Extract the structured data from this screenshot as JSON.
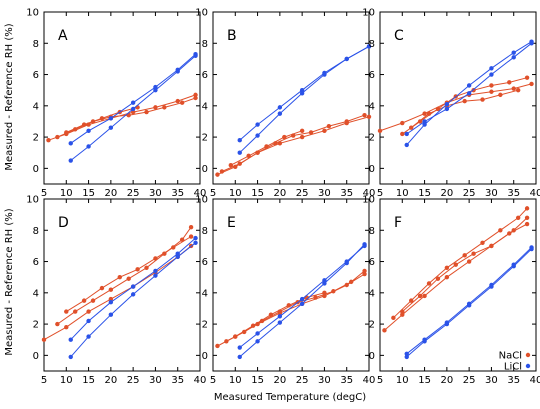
{
  "colors": {
    "NaCl": "#e0502a",
    "LiCl": "#2a52e8"
  },
  "chart_data": {
    "type": "scatter",
    "xlabel": "Measured Temperature (degC)",
    "ylabel": "Measured - Reference RH (%)",
    "xlim": [
      5,
      40
    ],
    "ylim": [
      -1,
      10
    ],
    "xticks": [
      5,
      10,
      15,
      20,
      25,
      30,
      35,
      40
    ],
    "yticks": [
      0,
      2,
      4,
      6,
      8,
      10
    ],
    "grid": false,
    "legend_placement": "bottom-right of panel F",
    "legend": [
      "NaCl",
      "LiCl"
    ],
    "panels": [
      {
        "label": "A",
        "series": [
          {
            "name": "NaCl",
            "x": [
              6,
              10,
              15,
              20,
              25,
              30,
              35,
              39
            ],
            "y": [
              1.8,
              2.2,
              2.8,
              3.2,
              3.6,
              3.9,
              4.3,
              4.7
            ]
          },
          {
            "name": "NaCl",
            "x": [
              8,
              12,
              16,
              20,
              24,
              28,
              32,
              36,
              39
            ],
            "y": [
              2.0,
              2.5,
              3.0,
              3.3,
              3.4,
              3.6,
              3.9,
              4.2,
              4.5
            ]
          },
          {
            "name": "NaCl",
            "x": [
              10,
              14,
              18,
              22,
              26
            ],
            "y": [
              2.3,
              2.8,
              3.2,
              3.6,
              3.9
            ]
          },
          {
            "name": "LiCl",
            "x": [
              11,
              15,
              20,
              25,
              30,
              35,
              39
            ],
            "y": [
              0.5,
              1.4,
              2.6,
              3.8,
              5.0,
              6.2,
              7.2
            ]
          },
          {
            "name": "LiCl",
            "x": [
              11,
              15,
              20,
              25,
              30,
              35,
              39
            ],
            "y": [
              1.6,
              2.4,
              3.2,
              4.2,
              5.2,
              6.3,
              7.3
            ]
          }
        ]
      },
      {
        "label": "B",
        "series": [
          {
            "name": "NaCl",
            "x": [
              6,
              10,
              15,
              20,
              25,
              30,
              35,
              40
            ],
            "y": [
              -0.4,
              0.1,
              1.0,
              1.6,
              2.0,
              2.4,
              2.9,
              3.3
            ]
          },
          {
            "name": "NaCl",
            "x": [
              7,
              11,
              15,
              19,
              23,
              27,
              31,
              35,
              39
            ],
            "y": [
              -0.2,
              0.3,
              1.0,
              1.6,
              2.1,
              2.3,
              2.7,
              3.0,
              3.4
            ]
          },
          {
            "name": "NaCl",
            "x": [
              9,
              13,
              17,
              21,
              25
            ],
            "y": [
              0.2,
              0.8,
              1.4,
              2.0,
              2.4
            ]
          },
          {
            "name": "LiCl",
            "x": [
              11,
              15,
              20,
              25,
              30,
              35,
              40
            ],
            "y": [
              1.0,
              2.1,
              3.5,
              4.8,
              6.0,
              7.0,
              7.8
            ]
          },
          {
            "name": "LiCl",
            "x": [
              11,
              15,
              20,
              25,
              30,
              35,
              40
            ],
            "y": [
              1.8,
              2.8,
              3.9,
              5.0,
              6.1,
              7.0,
              7.8
            ]
          }
        ]
      },
      {
        "label": "C",
        "series": [
          {
            "name": "NaCl",
            "x": [
              5,
              10,
              15,
              20,
              25,
              30,
              35,
              39
            ],
            "y": [
              2.4,
              2.9,
              3.5,
              4.2,
              4.7,
              4.9,
              5.1,
              5.4
            ]
          },
          {
            "name": "NaCl",
            "x": [
              10,
              14,
              18,
              22,
              26,
              30,
              34,
              38
            ],
            "y": [
              2.2,
              3.0,
              3.8,
              4.6,
              5.0,
              5.3,
              5.5,
              5.8
            ]
          },
          {
            "name": "NaCl",
            "x": [
              12,
              16,
              20,
              24,
              28,
              32,
              36
            ],
            "y": [
              2.6,
              3.5,
              4.0,
              4.3,
              4.4,
              4.7,
              5.0
            ]
          },
          {
            "name": "LiCl",
            "x": [
              11,
              15,
              20,
              25,
              30,
              35,
              39
            ],
            "y": [
              1.5,
              2.8,
              4.1,
              5.3,
              6.4,
              7.4,
              8.1
            ]
          },
          {
            "name": "LiCl",
            "x": [
              11,
              15,
              20,
              25,
              30,
              35,
              39
            ],
            "y": [
              2.2,
              3.0,
              3.8,
              4.8,
              6.0,
              7.1,
              8.0
            ]
          }
        ]
      },
      {
        "label": "D",
        "series": [
          {
            "name": "NaCl",
            "x": [
              5,
              10,
              15,
              20,
              25,
              30,
              35,
              38
            ],
            "y": [
              1.0,
              1.8,
              2.8,
              3.6,
              4.4,
              5.3,
              6.3,
              7.0
            ]
          },
          {
            "name": "NaCl",
            "x": [
              8,
              12,
              16,
              20,
              24,
              28,
              32,
              36,
              38
            ],
            "y": [
              2.0,
              2.8,
              3.5,
              4.2,
              4.9,
              5.6,
              6.5,
              7.4,
              8.2
            ]
          },
          {
            "name": "NaCl",
            "x": [
              10,
              14,
              18,
              22,
              26,
              30,
              34,
              38
            ],
            "y": [
              2.8,
              3.5,
              4.3,
              5.0,
              5.5,
              6.2,
              6.9,
              7.6
            ]
          },
          {
            "name": "LiCl",
            "x": [
              11,
              15,
              20,
              25,
              30,
              35,
              39
            ],
            "y": [
              -0.1,
              1.2,
              2.6,
              3.9,
              5.1,
              6.3,
              7.2
            ]
          },
          {
            "name": "LiCl",
            "x": [
              11,
              15,
              20,
              25,
              30,
              35,
              39
            ],
            "y": [
              1.0,
              2.2,
              3.4,
              4.4,
              5.4,
              6.5,
              7.5
            ]
          }
        ]
      },
      {
        "label": "E",
        "series": [
          {
            "name": "NaCl",
            "x": [
              6,
              10,
              15,
              20,
              25,
              30,
              35,
              39
            ],
            "y": [
              0.6,
              1.2,
              2.0,
              2.7,
              3.3,
              3.8,
              4.5,
              5.2
            ]
          },
          {
            "name": "NaCl",
            "x": [
              8,
              12,
              16,
              20,
              24,
              28,
              32,
              36,
              39
            ],
            "y": [
              0.9,
              1.5,
              2.2,
              2.8,
              3.4,
              3.7,
              4.1,
              4.7,
              5.4
            ]
          },
          {
            "name": "NaCl",
            "x": [
              10,
              14,
              18,
              22,
              26,
              30
            ],
            "y": [
              1.2,
              1.9,
              2.6,
              3.2,
              3.7,
              4.0
            ]
          },
          {
            "name": "LiCl",
            "x": [
              11,
              15,
              20,
              25,
              30,
              35,
              39
            ],
            "y": [
              -0.1,
              0.9,
              2.1,
              3.3,
              4.6,
              5.9,
              7.1
            ]
          },
          {
            "name": "LiCl",
            "x": [
              11,
              15,
              20,
              25,
              30,
              35,
              39
            ],
            "y": [
              0.5,
              1.4,
              2.5,
              3.6,
              4.8,
              6.0,
              7.0
            ]
          }
        ]
      },
      {
        "label": "F",
        "series": [
          {
            "name": "NaCl",
            "x": [
              6,
              10,
              15,
              20,
              25,
              30,
              35,
              38
            ],
            "y": [
              1.6,
              2.6,
              3.8,
              5.0,
              6.0,
              7.0,
              8.0,
              8.8
            ]
          },
          {
            "name": "NaCl",
            "x": [
              8,
              12,
              16,
              20,
              24,
              28,
              32,
              36,
              38
            ],
            "y": [
              2.4,
              3.5,
              4.6,
              5.6,
              6.4,
              7.2,
              8.0,
              8.8,
              9.4
            ]
          },
          {
            "name": "NaCl",
            "x": [
              10,
              14,
              18,
              22,
              26,
              30,
              34,
              38
            ],
            "y": [
              2.8,
              3.8,
              4.9,
              5.8,
              6.5,
              7.0,
              7.8,
              8.4
            ]
          },
          {
            "name": "LiCl",
            "x": [
              11,
              15,
              20,
              25,
              30,
              35,
              39
            ],
            "y": [
              -0.1,
              0.9,
              2.0,
              3.2,
              4.4,
              5.7,
              6.8
            ]
          },
          {
            "name": "LiCl",
            "x": [
              11,
              15,
              20,
              25,
              30,
              35,
              39
            ],
            "y": [
              0.1,
              1.0,
              2.1,
              3.3,
              4.5,
              5.8,
              6.9
            ]
          }
        ]
      }
    ]
  }
}
